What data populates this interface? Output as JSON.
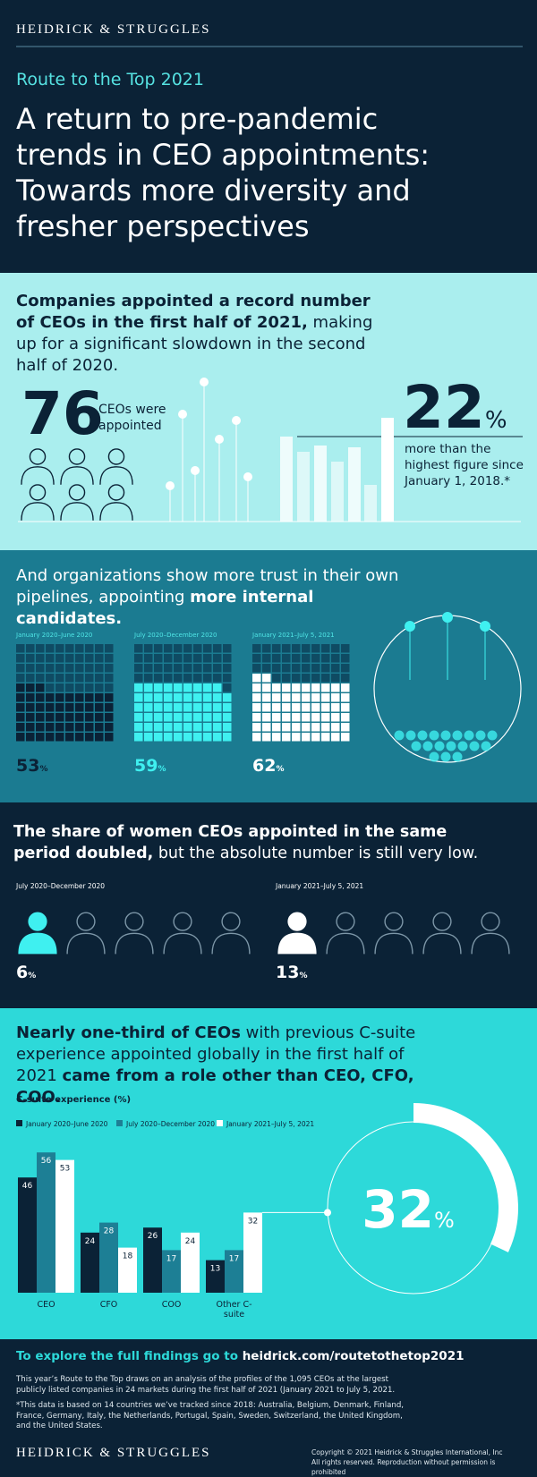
{
  "header": {
    "brand": "HEIDRICK & STRUGGLES",
    "kicker": "Route to the Top 2021",
    "title": "A return to pre-pandemic trends in CEO appointments: Towards more diversity and fresher perspectives"
  },
  "section1": {
    "headline_bold": "Companies appointed a record number of CEOs in the first half of 2021,",
    "headline_rest": " making up for a significant slowdown in the second half of 2020.",
    "count": 76,
    "count_label": "CEOs were appointed",
    "increase": {
      "value": 22,
      "unit": "%"
    },
    "increase_label": "more than the highest figure since January 1, 2018.*"
  },
  "section2": {
    "headline_plain": "And organizations show more trust in their own pipelines, appointing ",
    "headline_bold": "more internal candidates.",
    "periods": [
      {
        "label": "January 2020–June 2020",
        "value": 53,
        "unit": "%"
      },
      {
        "label": "July 2020–December 2020",
        "value": 59,
        "unit": "%"
      },
      {
        "label": "January 2021–July 5, 2021",
        "value": 62,
        "unit": "%"
      }
    ]
  },
  "section3": {
    "headline_bold": "The share of women CEOs appointed in the same period doubled,",
    "headline_rest": " but the absolute number is still very low.",
    "periods": [
      {
        "label": "July 2020–December 2020",
        "value": 6,
        "unit": "%"
      },
      {
        "label": "January 2021–July 5, 2021",
        "value": 13,
        "unit": "%"
      }
    ]
  },
  "section4": {
    "headline_bold1": "Nearly one-third of CEOs",
    "headline_plain": " with previous C-suite experience appointed globally in the first half of 2021 ",
    "headline_bold2": "came from a role other than CEO, CFO, COO.",
    "highlight": {
      "value": 32,
      "unit": "%"
    }
  },
  "chart_data": {
    "type": "bar",
    "title": "C-suite experience (%)",
    "categories": [
      "CEO",
      "CFO",
      "COO",
      "Other C-suite"
    ],
    "series": [
      {
        "name": "January 2020–June 2020",
        "color": "#0b2236",
        "values": [
          46,
          24,
          26,
          13
        ]
      },
      {
        "name": "July 2020–December 2020",
        "color": "#1d7f95",
        "values": [
          56,
          28,
          17,
          17
        ]
      },
      {
        "name": "January 2021–July 5, 2021",
        "color": "#ffffff",
        "values": [
          53,
          18,
          24,
          32
        ]
      }
    ]
  },
  "footer": {
    "cta_plain": "To explore the full findings go to ",
    "cta_bold": "heidrick.com/routetothetop2021",
    "note1": "This year’s Route to the Top draws on an analysis of the profiles of the 1,095 CEOs at the largest publicly listed companies in 24 markets during the first half of 2021 (January 2021 to July 5, 2021.",
    "note2": "*This data is based on 14 countries we’ve tracked since 2018: Australia, Belgium, Denmark, Finland, France, Germany, Italy, the Netherlands, Portugal, Spain, Sweden, Switzerland, the United Kingdom, and the United States.",
    "brand": "HEIDRICK & STRUGGLES",
    "copyright1": "Copyright © 2021 Heidrick & Struggles International, Inc",
    "copyright2": "All rights reserved. Reproduction without permission is prohibited"
  }
}
